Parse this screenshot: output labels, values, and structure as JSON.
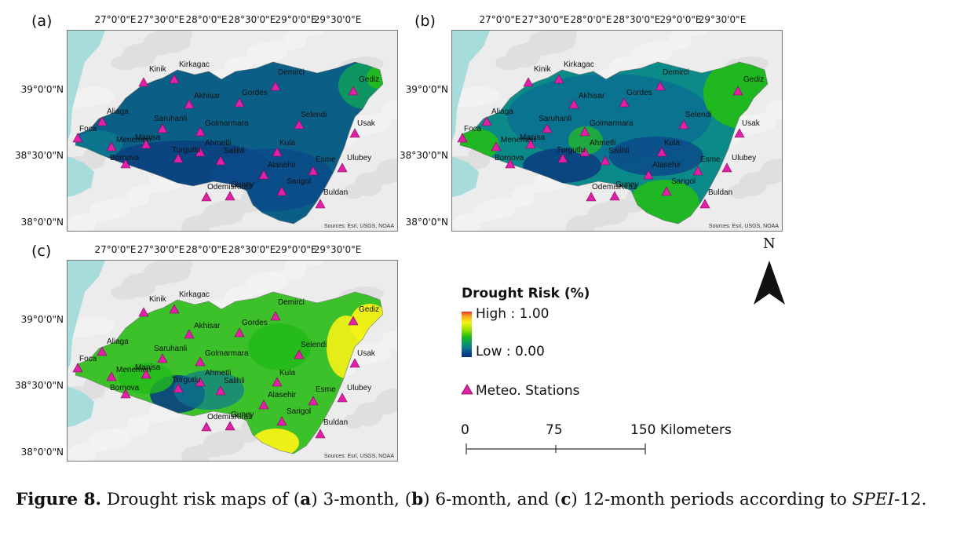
{
  "panels": [
    {
      "label": "(a)",
      "variant": "a"
    },
    {
      "label": "(b)",
      "variant": "b"
    },
    {
      "label": "(c)",
      "variant": "c"
    }
  ],
  "longitude_labels": [
    "27°0'0\"E",
    "27°30'0\"E",
    "28°0'0\"E",
    "28°30'0\"E",
    "29°0'0\"E",
    "29°30'0\"E"
  ],
  "latitude_labels": [
    "39°0'0\"N",
    "38°30'0\"N",
    "38°0'0\"N"
  ],
  "stations": [
    "Kinik",
    "Kirkagac",
    "Demirci",
    "Gediz",
    "Akhisar",
    "Gordes",
    "Aliaga",
    "Saruhanli",
    "Selendi",
    "Foca",
    "Menemen",
    "Manisa",
    "Golmarmara",
    "Ahmetli",
    "Kula",
    "Usak",
    "Bornova",
    "Turgutlu",
    "Salihli",
    "Alasehir",
    "Esme",
    "Ulubey",
    "Sarigol",
    "OdemisKiraz",
    "Guney",
    "Buldan"
  ],
  "sources": "Sources: Esri, USGS, NOAA",
  "legend": {
    "title": "Drought Risk (%)",
    "high": "High : 1.00",
    "low": "Low : 0.00",
    "stations_label": "Meteo. Stations",
    "colors": [
      "#e8302a",
      "#f5a623",
      "#f6f216",
      "#9be000",
      "#22bb1a",
      "#0d9c5e",
      "#0b7a8e",
      "#0a4a8a",
      "#082f7a"
    ],
    "station_color": "#e21fa6"
  },
  "north_label": "N",
  "scale": {
    "labels": [
      "0",
      "75",
      "150 Kilometers"
    ],
    "unit": "Kilometers",
    "max": 150
  },
  "caption": {
    "figure": "Figure 8.",
    "text_1": " Drought risk maps of (",
    "a": "a",
    "text_2": ") 3-month, (",
    "b": "b",
    "text_3": ") 6-month, and (",
    "c": "c",
    "text_4": ") 12-month periods according to ",
    "spei": "SPEI",
    "text_5": "-12."
  }
}
